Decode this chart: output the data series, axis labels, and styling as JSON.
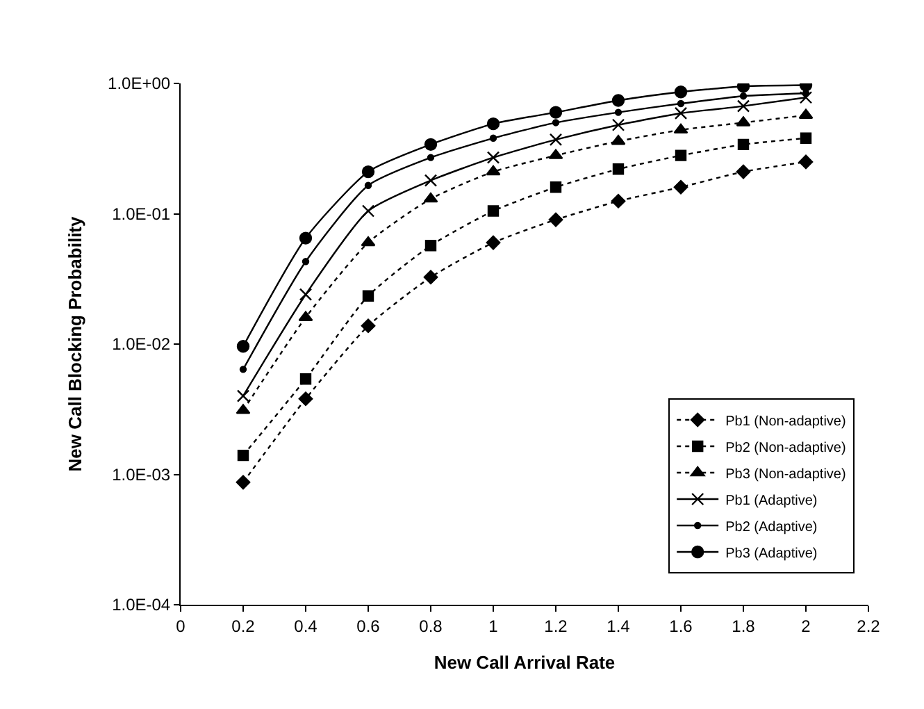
{
  "chart_data": {
    "type": "line",
    "xlabel": "New Call Arrival Rate",
    "ylabel": "New Call Blocking Probability",
    "x": [
      0.2,
      0.4,
      0.6,
      0.8,
      1.0,
      1.2,
      1.4,
      1.6,
      1.8,
      2.0
    ],
    "series": [
      {
        "name": "Pb1 (Non-adaptive)",
        "color": "#000000",
        "marker": "diamond",
        "line_style": "dotted",
        "values": [
          0.00087,
          0.0038,
          0.0138,
          0.0326,
          0.06,
          0.09,
          0.125,
          0.16,
          0.21,
          0.25
        ]
      },
      {
        "name": "Pb2 (Non-adaptive)",
        "color": "#000000",
        "marker": "square",
        "line_style": "dotted",
        "values": [
          0.0014,
          0.0054,
          0.0234,
          0.057,
          0.105,
          0.16,
          0.22,
          0.28,
          0.34,
          0.38
        ]
      },
      {
        "name": "Pb3 (Non-adaptive)",
        "color": "#000000",
        "marker": "triangle",
        "line_style": "dotted",
        "values": [
          0.0031,
          0.016,
          0.06,
          0.13,
          0.21,
          0.28,
          0.36,
          0.44,
          0.5,
          0.57
        ]
      },
      {
        "name": "Pb1 (Adaptive)",
        "color": "#000000",
        "marker": "cross",
        "line_style": "solid",
        "values": [
          0.004,
          0.024,
          0.105,
          0.18,
          0.27,
          0.37,
          0.48,
          0.59,
          0.67,
          0.78
        ]
      },
      {
        "name": "Pb2 (Adaptive)",
        "color": "#000000",
        "marker": "dot",
        "line_style": "solid",
        "values": [
          0.0064,
          0.043,
          0.165,
          0.27,
          0.38,
          0.5,
          0.6,
          0.7,
          0.8,
          0.84
        ]
      },
      {
        "name": "Pb3 (Adaptive)",
        "color": "#000000",
        "marker": "circle",
        "line_style": "solid",
        "values": [
          0.0096,
          0.065,
          0.21,
          0.34,
          0.49,
          0.6,
          0.74,
          0.86,
          0.95,
          0.97
        ]
      }
    ],
    "log": "y",
    "legend": "bottom right",
    "xlim": [
      0,
      2.2
    ],
    "xticks": [
      0,
      0.2,
      0.4,
      0.6,
      0.8,
      1,
      1.2,
      1.4,
      1.6,
      1.8,
      2,
      2.2
    ],
    "ylim": [
      0.0001,
      1
    ],
    "yticks": [
      {
        "value": 0.0001,
        "label": "1.0E-04"
      },
      {
        "value": 0.001,
        "label": "1.0E-03"
      },
      {
        "value": 0.01,
        "label": "1.0E-02"
      },
      {
        "value": 0.1,
        "label": "1.0E-01"
      },
      {
        "value": 1,
        "label": "1.0E+00"
      }
    ]
  }
}
